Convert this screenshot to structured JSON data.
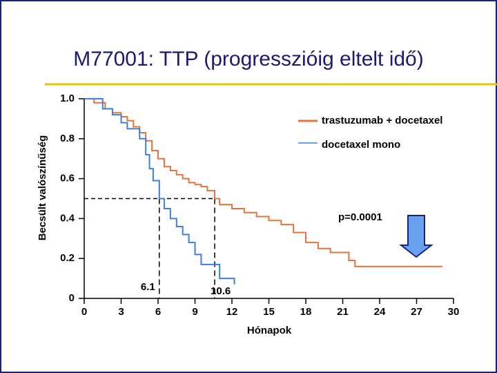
{
  "chart_data": {
    "type": "step",
    "title": "M77001: TTP (progresszióig eltelt idő)",
    "x_label": "Hónapok",
    "y_label": "Becsült valószínűség",
    "xlim": [
      0,
      30
    ],
    "xticks": [
      0,
      3,
      6,
      9,
      12,
      15,
      18,
      21,
      24,
      27,
      30
    ],
    "ylim": [
      0,
      1
    ],
    "yticks": [
      0,
      0.2,
      0.4,
      0.6,
      0.8,
      {
        "value": 1,
        "label": "1.0"
      }
    ],
    "series": [
      {
        "name": "trastuzumab + docetaxel",
        "color": "#e8703a",
        "x": [
          0,
          0.8,
          1.7,
          2.3,
          3.0,
          3.5,
          4.0,
          4.5,
          5.0,
          5.5,
          6.0,
          6.5,
          7.0,
          7.5,
          8.0,
          8.5,
          9.0,
          9.5,
          10.0,
          10.6,
          11.0,
          12.0,
          13.0,
          14.0,
          15.0,
          16.0,
          17.0,
          18.0,
          19.0,
          20.0,
          21.5,
          22.0,
          29.1
        ],
        "values": [
          1.0,
          0.98,
          0.95,
          0.93,
          0.91,
          0.89,
          0.86,
          0.83,
          0.79,
          0.74,
          0.7,
          0.66,
          0.64,
          0.62,
          0.6,
          0.58,
          0.57,
          0.56,
          0.54,
          0.5,
          0.47,
          0.45,
          0.43,
          0.41,
          0.39,
          0.37,
          0.33,
          0.28,
          0.25,
          0.23,
          0.19,
          0.16,
          0.16
        ]
      },
      {
        "name": "docetaxel mono",
        "color": "#3a7fe0",
        "x": [
          0,
          1.5,
          2.3,
          3.0,
          3.5,
          4.5,
          5.0,
          5.3,
          5.6,
          6.1,
          6.5,
          7.0,
          7.5,
          8.0,
          8.5,
          9.0,
          9.5,
          11.0,
          12.2
        ],
        "values": [
          1.0,
          0.95,
          0.92,
          0.88,
          0.85,
          0.8,
          0.72,
          0.65,
          0.59,
          0.5,
          0.45,
          0.4,
          0.36,
          0.32,
          0.28,
          0.22,
          0.17,
          0.1,
          0.07
        ]
      }
    ],
    "medians": [
      6.1,
      10.6
    ],
    "median_level": 0.5,
    "annotation": "p=0.0001"
  }
}
